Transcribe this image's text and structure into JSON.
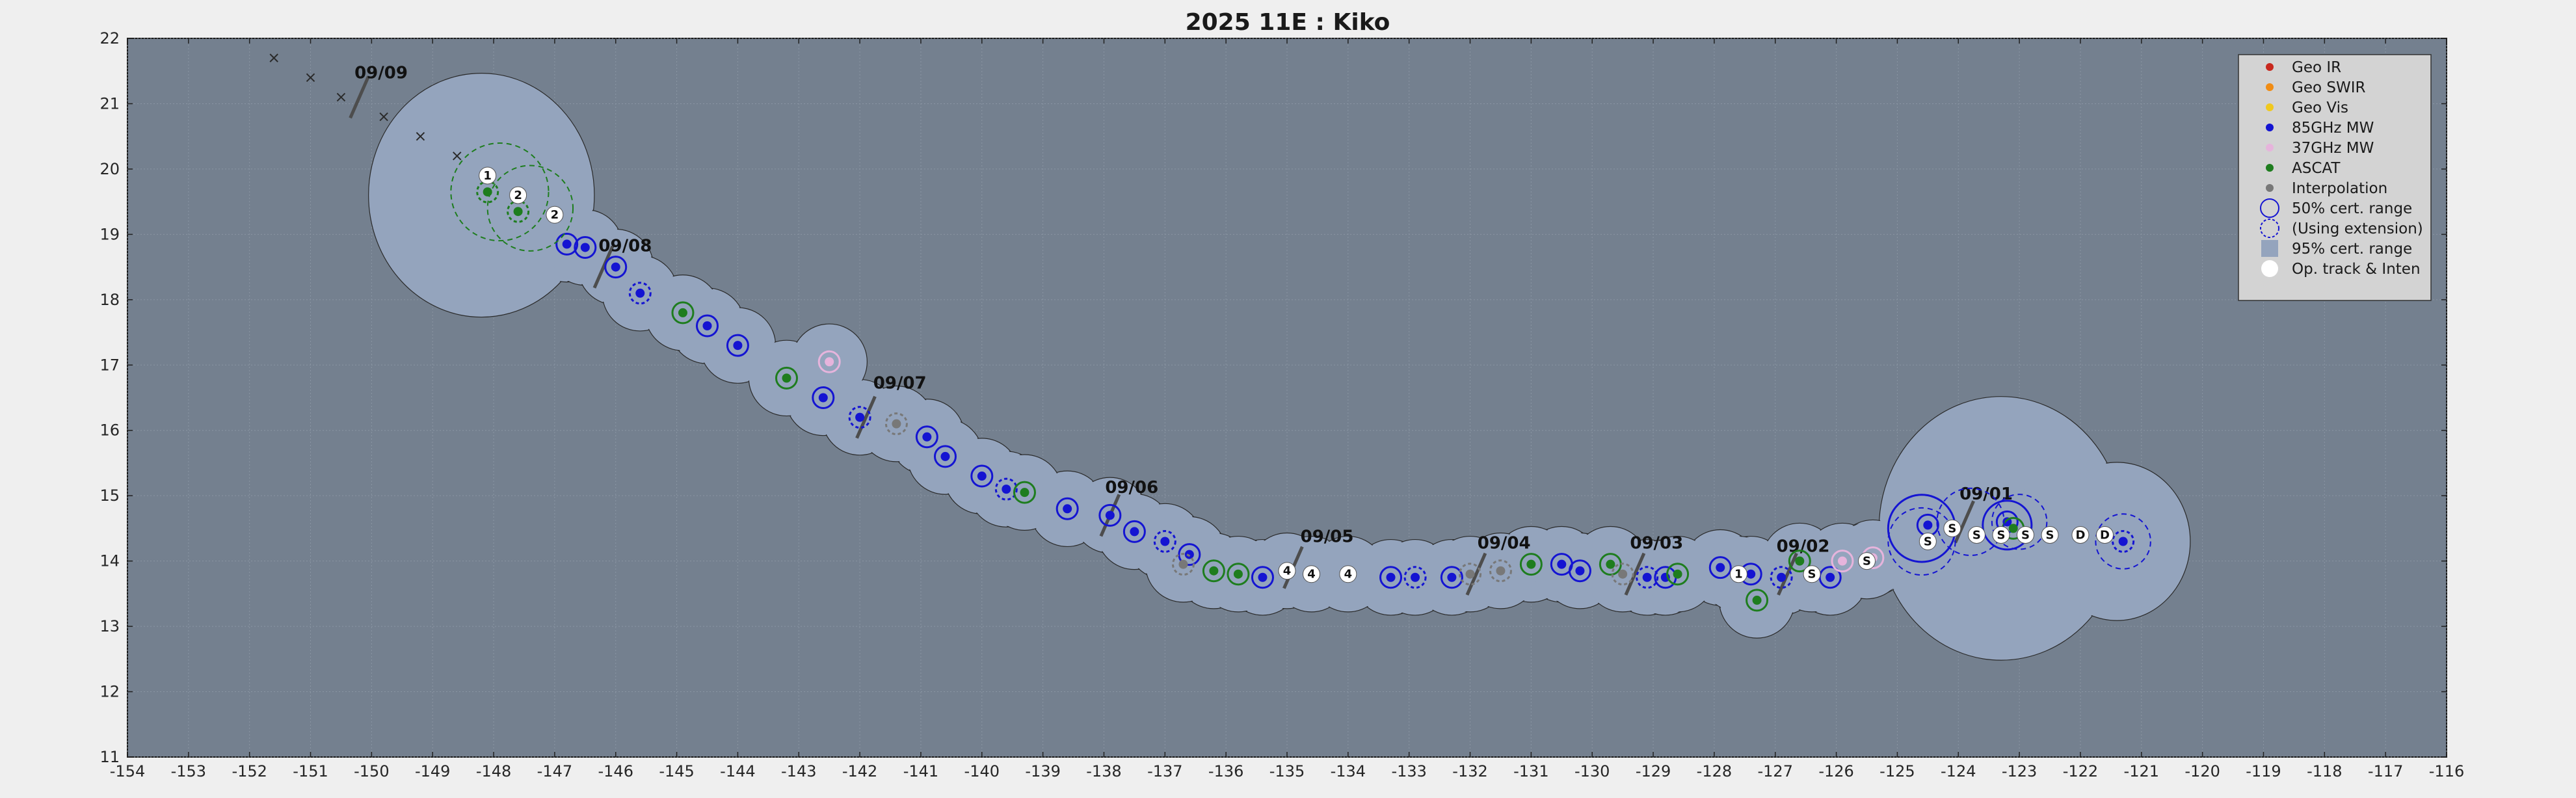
{
  "chart_data": {
    "type": "scatter",
    "title": "2025  11E :  Kiko",
    "xlim": [
      -154,
      -116
    ],
    "ylim": [
      11,
      22
    ],
    "x_ticks": [
      -154,
      -153,
      -152,
      -151,
      -150,
      -149,
      -148,
      -147,
      -146,
      -145,
      -144,
      -143,
      -142,
      -141,
      -140,
      -139,
      -138,
      -137,
      -136,
      -135,
      -134,
      -133,
      -132,
      -131,
      -130,
      -129,
      -128,
      -127,
      -126,
      -125,
      -124,
      -123,
      -122,
      -121,
      -120,
      -119,
      -118,
      -117,
      -116
    ],
    "y_ticks": [
      11,
      12,
      13,
      14,
      15,
      16,
      17,
      18,
      19,
      20,
      21,
      22
    ],
    "grid": true,
    "legend_position": "top-right",
    "colors": {
      "plot_bg": "#74808f",
      "cert95": "#94a4bd",
      "geo_ir": "#c8281e",
      "geo_swir": "#f08c14",
      "geo_vis": "#f0c81e",
      "mw85": "#1414d2",
      "mw37": "#e6b4dc",
      "ascat": "#1e7d1e",
      "interp": "#787878",
      "op": "#ffffff"
    },
    "legend": [
      {
        "label": "Geo IR",
        "kind": "dot",
        "color": "geo_ir"
      },
      {
        "label": "Geo SWIR",
        "kind": "dot",
        "color": "geo_swir"
      },
      {
        "label": "Geo Vis",
        "kind": "dot",
        "color": "geo_vis"
      },
      {
        "label": "85GHz MW",
        "kind": "dot",
        "color": "mw85"
      },
      {
        "label": "37GHz MW",
        "kind": "dot",
        "color": "mw37"
      },
      {
        "label": "ASCAT",
        "kind": "dot",
        "color": "ascat"
      },
      {
        "label": "Interpolation",
        "kind": "dot",
        "color": "interp"
      },
      {
        "label": "50% cert. range",
        "kind": "ring",
        "color": "mw85"
      },
      {
        "label": "(Using extension)",
        "kind": "ring-dashed",
        "color": "mw85"
      },
      {
        "label": "95% cert. range",
        "kind": "patch",
        "color": "cert95"
      },
      {
        "label": "Op. track & Inten",
        "kind": "op",
        "color": "op"
      }
    ],
    "date_markers": [
      {
        "label": "09/01",
        "x": -123.9,
        "y": 14.6,
        "tx": -124.3,
        "ty": 14.9
      },
      {
        "label": "09/02",
        "x": -126.8,
        "y": 13.8,
        "tx": -127.3,
        "ty": 14.1
      },
      {
        "label": "09/03",
        "x": -129.3,
        "y": 13.8,
        "tx": -129.7,
        "ty": 14.15
      },
      {
        "label": "09/04",
        "x": -131.9,
        "y": 13.8,
        "tx": -132.2,
        "ty": 14.15
      },
      {
        "label": "09/05",
        "x": -134.9,
        "y": 13.9,
        "tx": -135.1,
        "ty": 14.25
      },
      {
        "label": "09/06",
        "x": -137.9,
        "y": 14.7,
        "tx": -138.3,
        "ty": 15.0
      },
      {
        "label": "09/07",
        "x": -141.9,
        "y": 16.2,
        "tx": -142.1,
        "ty": 16.6
      },
      {
        "label": "09/08",
        "x": -146.2,
        "y": 18.5,
        "tx": -146.6,
        "ty": 18.7
      },
      {
        "label": "09/09",
        "x": -150.2,
        "y": 21.1,
        "tx": -150.6,
        "ty": 21.35
      }
    ],
    "crosses": [
      {
        "x": -151.6,
        "y": 21.7
      },
      {
        "x": -151.0,
        "y": 21.4
      },
      {
        "x": -150.5,
        "y": 21.1
      },
      {
        "x": -149.8,
        "y": 20.8
      },
      {
        "x": -149.2,
        "y": 20.5
      },
      {
        "x": -148.6,
        "y": 20.2
      }
    ],
    "op_track": [
      {
        "x": -148.1,
        "y": 19.9,
        "label": "1"
      },
      {
        "x": -147.6,
        "y": 19.6,
        "label": "2"
      },
      {
        "x": -147.0,
        "y": 19.3,
        "label": "2"
      },
      {
        "x": -135.0,
        "y": 13.85,
        "label": "4"
      },
      {
        "x": -134.6,
        "y": 13.8,
        "label": "4"
      },
      {
        "x": -134.0,
        "y": 13.8,
        "label": "4"
      },
      {
        "x": -127.6,
        "y": 13.8,
        "label": "1"
      },
      {
        "x": -126.4,
        "y": 13.8,
        "label": "S"
      },
      {
        "x": -125.5,
        "y": 14.0,
        "label": "S"
      },
      {
        "x": -124.5,
        "y": 14.3,
        "label": "S"
      },
      {
        "x": -124.1,
        "y": 14.5,
        "label": "S"
      },
      {
        "x": -123.7,
        "y": 14.4,
        "label": "S"
      },
      {
        "x": -123.3,
        "y": 14.4,
        "label": "S"
      },
      {
        "x": -122.9,
        "y": 14.4,
        "label": "S"
      },
      {
        "x": -122.5,
        "y": 14.4,
        "label": "S"
      },
      {
        "x": -122.0,
        "y": 14.4,
        "label": "D"
      },
      {
        "x": -121.6,
        "y": 14.4,
        "label": "D"
      }
    ],
    "mw85_fixes": [
      {
        "x": -146.8,
        "y": 18.85
      },
      {
        "x": -146.5,
        "y": 18.8
      },
      {
        "x": -146.0,
        "y": 18.5
      },
      {
        "x": -145.6,
        "y": 18.1
      },
      {
        "x": -144.5,
        "y": 17.6
      },
      {
        "x": -144.0,
        "y": 17.3
      },
      {
        "x": -142.6,
        "y": 16.5
      },
      {
        "x": -142.0,
        "y": 16.2
      },
      {
        "x": -140.9,
        "y": 15.9
      },
      {
        "x": -140.6,
        "y": 15.6
      },
      {
        "x": -140.0,
        "y": 15.3
      },
      {
        "x": -139.6,
        "y": 15.1
      },
      {
        "x": -138.6,
        "y": 14.8
      },
      {
        "x": -137.9,
        "y": 14.7
      },
      {
        "x": -137.5,
        "y": 14.45
      },
      {
        "x": -137.0,
        "y": 14.3
      },
      {
        "x": -136.6,
        "y": 14.1
      },
      {
        "x": -135.4,
        "y": 13.75
      },
      {
        "x": -133.3,
        "y": 13.75
      },
      {
        "x": -132.9,
        "y": 13.75
      },
      {
        "x": -132.3,
        "y": 13.75
      },
      {
        "x": -130.5,
        "y": 13.95
      },
      {
        "x": -130.2,
        "y": 13.85
      },
      {
        "x": -129.1,
        "y": 13.75
      },
      {
        "x": -128.8,
        "y": 13.75
      },
      {
        "x": -127.9,
        "y": 13.9
      },
      {
        "x": -127.4,
        "y": 13.8
      },
      {
        "x": -126.9,
        "y": 13.75
      },
      {
        "x": -126.1,
        "y": 13.75
      },
      {
        "x": -124.5,
        "y": 14.55
      },
      {
        "x": -123.2,
        "y": 14.6
      },
      {
        "x": -121.3,
        "y": 14.3
      }
    ],
    "ascat_fixes": [
      {
        "x": -148.1,
        "y": 19.65
      },
      {
        "x": -147.6,
        "y": 19.35
      },
      {
        "x": -144.9,
        "y": 17.8
      },
      {
        "x": -143.2,
        "y": 16.8
      },
      {
        "x": -139.3,
        "y": 15.05
      },
      {
        "x": -136.2,
        "y": 13.85
      },
      {
        "x": -135.8,
        "y": 13.8
      },
      {
        "x": -131.0,
        "y": 13.95
      },
      {
        "x": -129.7,
        "y": 13.95
      },
      {
        "x": -128.6,
        "y": 13.8
      },
      {
        "x": -127.3,
        "y": 13.4
      },
      {
        "x": -126.6,
        "y": 14.0
      },
      {
        "x": -123.1,
        "y": 14.5
      }
    ],
    "mw37_fixes": [
      {
        "x": -142.5,
        "y": 17.05
      },
      {
        "x": -125.9,
        "y": 14.0
      },
      {
        "x": -125.4,
        "y": 14.05
      }
    ],
    "interp_fixes": [
      {
        "x": -141.4,
        "y": 16.1
      },
      {
        "x": -136.7,
        "y": 13.95
      },
      {
        "x": -132.0,
        "y": 13.8
      },
      {
        "x": -131.5,
        "y": 13.85
      },
      {
        "x": -129.5,
        "y": 13.8
      }
    ]
  }
}
